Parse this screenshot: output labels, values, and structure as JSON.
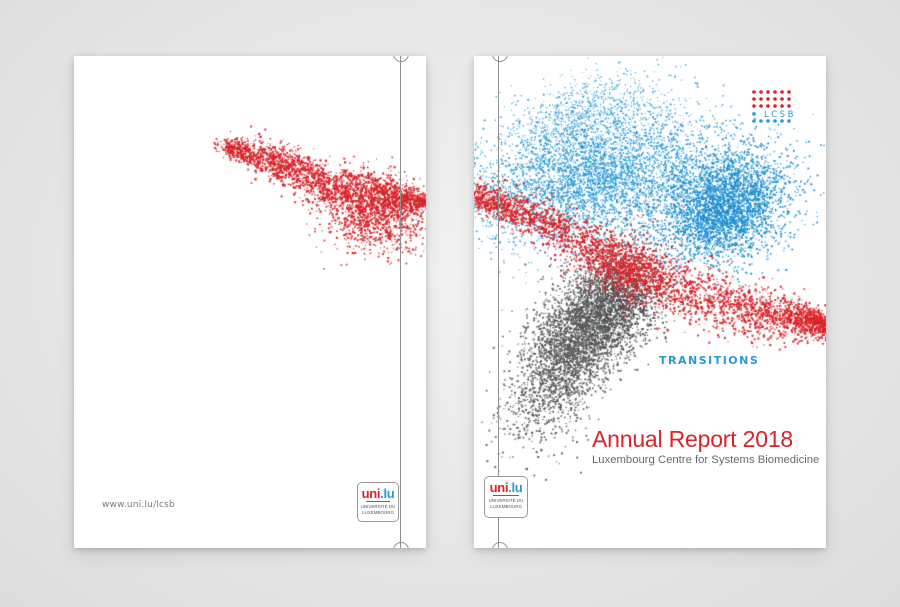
{
  "back_cover": {
    "url": "www.uni.lu/lcsb"
  },
  "front_cover": {
    "lcsb_logo_text": "LCSB",
    "theme": "TRANSITIONS",
    "title": "Annual Report 2018",
    "subtitle": "Luxembourg Centre for Systems Biomedicine"
  },
  "university_logo": {
    "mark_red": "uni",
    "mark_blue": ".lu",
    "line1": "UNIVERSITÉ DU",
    "line2": "LUXEMBOURG"
  },
  "colors": {
    "red": "#d8242a",
    "blue": "#2a9ad6",
    "gray": "#555a5c",
    "text_gray": "#6a6a6a"
  }
}
